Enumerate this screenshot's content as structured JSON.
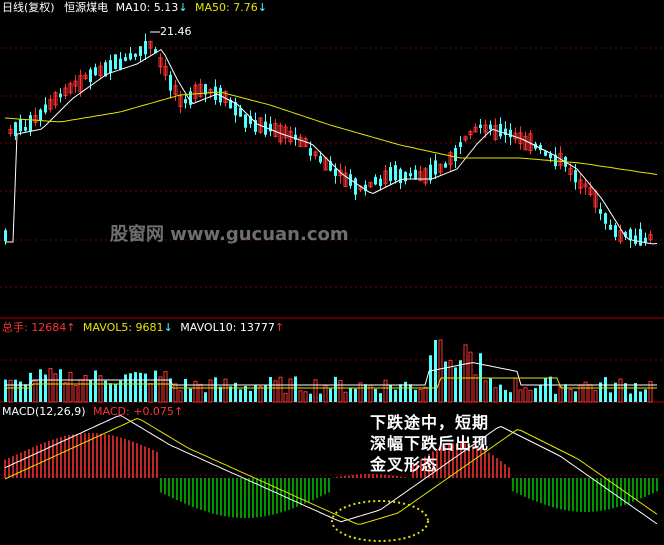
{
  "colors": {
    "up": "#ff3232",
    "down": "#54ffff",
    "ma10": "#ffffff",
    "ma50": "#e5e500",
    "vol_ma5": "#ffffff",
    "vol_ma10": "#e5e500",
    "dif": "#ffffff",
    "dea": "#e5e500",
    "macd_pos": "#ff3232",
    "macd_neg": "#00c800",
    "grid": "#7a0000",
    "ellipse": "#e5e500"
  },
  "header": {
    "price": {
      "period": "日线(复权)",
      "stock": "恒源煤电",
      "ma10_label": "MA10: 5.13",
      "ma10_arrow": "↓",
      "ma50_label": "MA50: 7.76",
      "ma50_arrow": "↓"
    },
    "volume": {
      "total_label": "总手: 12684",
      "total_arrow": "↑",
      "mavol5_label": "MAVOL5: 9681",
      "mavol5_arrow": "↓",
      "mavol10_label": "MAVOL10: 13777",
      "mavol10_arrow": "↑"
    },
    "macd": {
      "name": "MACD(12,26,9)",
      "value_label": "MACD: +0.075",
      "arrow": "↑"
    }
  },
  "annotation": {
    "line1": "下跌途中，短期",
    "line2": "深幅下跌后出现",
    "line3": "金叉形态"
  },
  "watermark": "股窗网 www.gucuan.com",
  "chart_data": [
    {
      "type": "candlestick",
      "panel": "price",
      "high_label": "21.46",
      "series": [
        {
          "name": "MA10",
          "last": 5.13
        },
        {
          "name": "MA50",
          "last": 7.76
        }
      ]
    },
    {
      "type": "bar",
      "panel": "volume",
      "series": [
        {
          "name": "总手",
          "last": 12684
        },
        {
          "name": "MAVOL5",
          "last": 9681
        },
        {
          "name": "MAVOL10",
          "last": 13777
        }
      ]
    },
    {
      "type": "bar",
      "panel": "macd",
      "params": [
        12,
        26,
        9
      ],
      "series": [
        {
          "name": "MACD",
          "last": 0.075
        }
      ]
    }
  ]
}
